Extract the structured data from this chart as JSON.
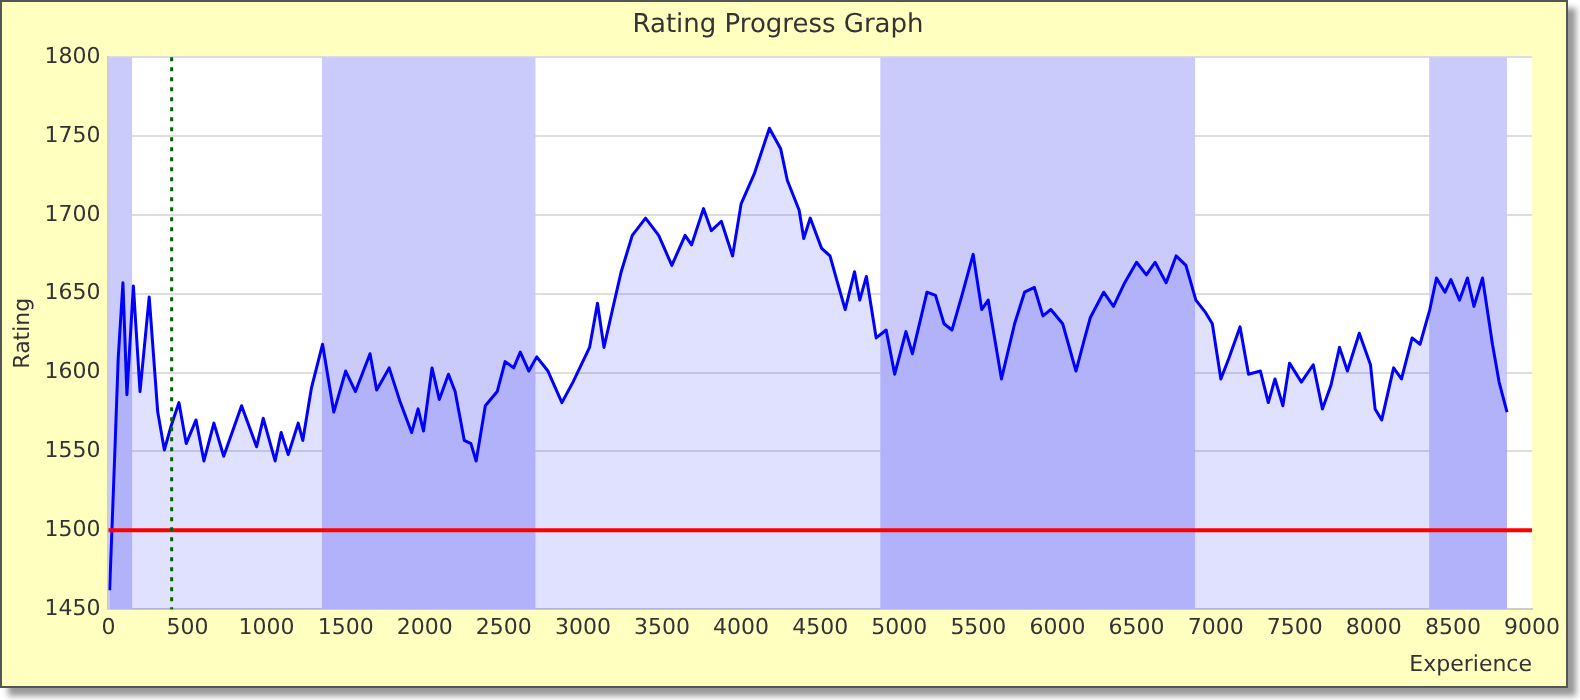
{
  "chart_data": {
    "type": "area",
    "title": "Rating Progress Graph",
    "xlabel": "Experience",
    "ylabel": "Rating",
    "xlim": [
      0,
      9000
    ],
    "xticks": [
      0,
      500,
      1000,
      1500,
      2000,
      2500,
      3000,
      3500,
      4000,
      4500,
      5000,
      5500,
      6000,
      6500,
      7000,
      7500,
      8000,
      8500,
      9000
    ],
    "ylim": [
      1450,
      1800
    ],
    "yticks": [
      1450,
      1500,
      1550,
      1600,
      1650,
      1700,
      1750,
      1800
    ],
    "grid": "y",
    "legend": false,
    "series": [
      {
        "color": "#0000ff",
        "x": [
          8,
          42,
          62,
          92,
          117,
          158,
          200,
          258,
          312,
          354,
          396,
          446,
          492,
          554,
          604,
          667,
          729,
          842,
          937,
          979,
          1054,
          1092,
          1137,
          1200,
          1229,
          1283,
          1354,
          1425,
          1500,
          1562,
          1654,
          1696,
          1775,
          1846,
          1917,
          1958,
          1992,
          2046,
          2092,
          2150,
          2192,
          2250,
          2292,
          2325,
          2383,
          2458,
          2508,
          2562,
          2604,
          2658,
          2708,
          2779,
          2867,
          2937,
          3042,
          3092,
          3133,
          3187,
          3242,
          3312,
          3396,
          3479,
          3562,
          3646,
          3687,
          3762,
          3812,
          3875,
          3946,
          4000,
          4083,
          4179,
          4250,
          4292,
          4367,
          4396,
          4437,
          4508,
          4562,
          4604,
          4658,
          4717,
          4750,
          4792,
          4854,
          4917,
          4971,
          5042,
          5083,
          5175,
          5229,
          5283,
          5333,
          5396,
          5467,
          5521,
          5562,
          5646,
          5729,
          5792,
          5854,
          5908,
          5958,
          6033,
          6117,
          6167,
          6208,
          6292,
          6354,
          6425,
          6500,
          6562,
          6617,
          6687,
          6750,
          6812,
          6875,
          6937,
          6979,
          7033,
          7083,
          7154,
          7208,
          7283,
          7333,
          7375,
          7425,
          7467,
          7542,
          7617,
          7675,
          7729,
          7783,
          7833,
          7908,
          7979,
          8008,
          8050,
          8125,
          8175,
          8242,
          8292,
          8354,
          8396,
          8450,
          8487,
          8542,
          8592,
          8633,
          8687,
          8750,
          8792,
          8842
        ],
        "values": [
          1462,
          1553,
          1609,
          1657,
          1586,
          1655,
          1588,
          1648,
          1575,
          1551,
          1566,
          1581,
          1555,
          1570,
          1544,
          1568,
          1547,
          1579,
          1553,
          1571,
          1544,
          1562,
          1548,
          1568,
          1557,
          1590,
          1618,
          1575,
          1601,
          1588,
          1612,
          1589,
          1603,
          1581,
          1562,
          1577,
          1563,
          1603,
          1583,
          1599,
          1588,
          1557,
          1555,
          1544,
          1579,
          1588,
          1607,
          1603,
          1613,
          1601,
          1610,
          1601,
          1581,
          1594,
          1616,
          1644,
          1616,
          1640,
          1664,
          1687,
          1698,
          1687,
          1668,
          1687,
          1681,
          1704,
          1690,
          1696,
          1674,
          1707,
          1726,
          1755,
          1742,
          1722,
          1703,
          1685,
          1698,
          1679,
          1674,
          1659,
          1640,
          1664,
          1646,
          1661,
          1622,
          1627,
          1599,
          1626,
          1612,
          1651,
          1649,
          1631,
          1627,
          1649,
          1675,
          1640,
          1646,
          1596,
          1631,
          1651,
          1654,
          1636,
          1640,
          1631,
          1601,
          1620,
          1635,
          1651,
          1642,
          1657,
          1670,
          1662,
          1670,
          1657,
          1674,
          1668,
          1646,
          1638,
          1631,
          1596,
          1609,
          1629,
          1599,
          1601,
          1581,
          1596,
          1579,
          1606,
          1594,
          1605,
          1577,
          1592,
          1616,
          1601,
          1625,
          1605,
          1577,
          1570,
          1603,
          1596,
          1622,
          1618,
          1640,
          1660,
          1651,
          1659,
          1646,
          1660,
          1642,
          1660,
          1618,
          1594,
          1575
        ]
      }
    ],
    "ref_lines": [
      {
        "axis": "y",
        "value": 1500,
        "color": "#ff0000",
        "line_style": "solid"
      },
      {
        "axis": "x",
        "value": 400,
        "color": "#006600",
        "line_style": "dotted"
      }
    ],
    "bands": [
      {
        "axis": "x",
        "from": 0,
        "to": 150,
        "color": "#cbcbfb"
      },
      {
        "axis": "x",
        "from": 1350,
        "to": 2700,
        "color": "#cbcbfb"
      },
      {
        "axis": "x",
        "from": 4880,
        "to": 6870,
        "color": "#cbcbfb"
      },
      {
        "axis": "x",
        "from": 8350,
        "to": 8842,
        "color": "#cbcbfb"
      }
    ]
  }
}
